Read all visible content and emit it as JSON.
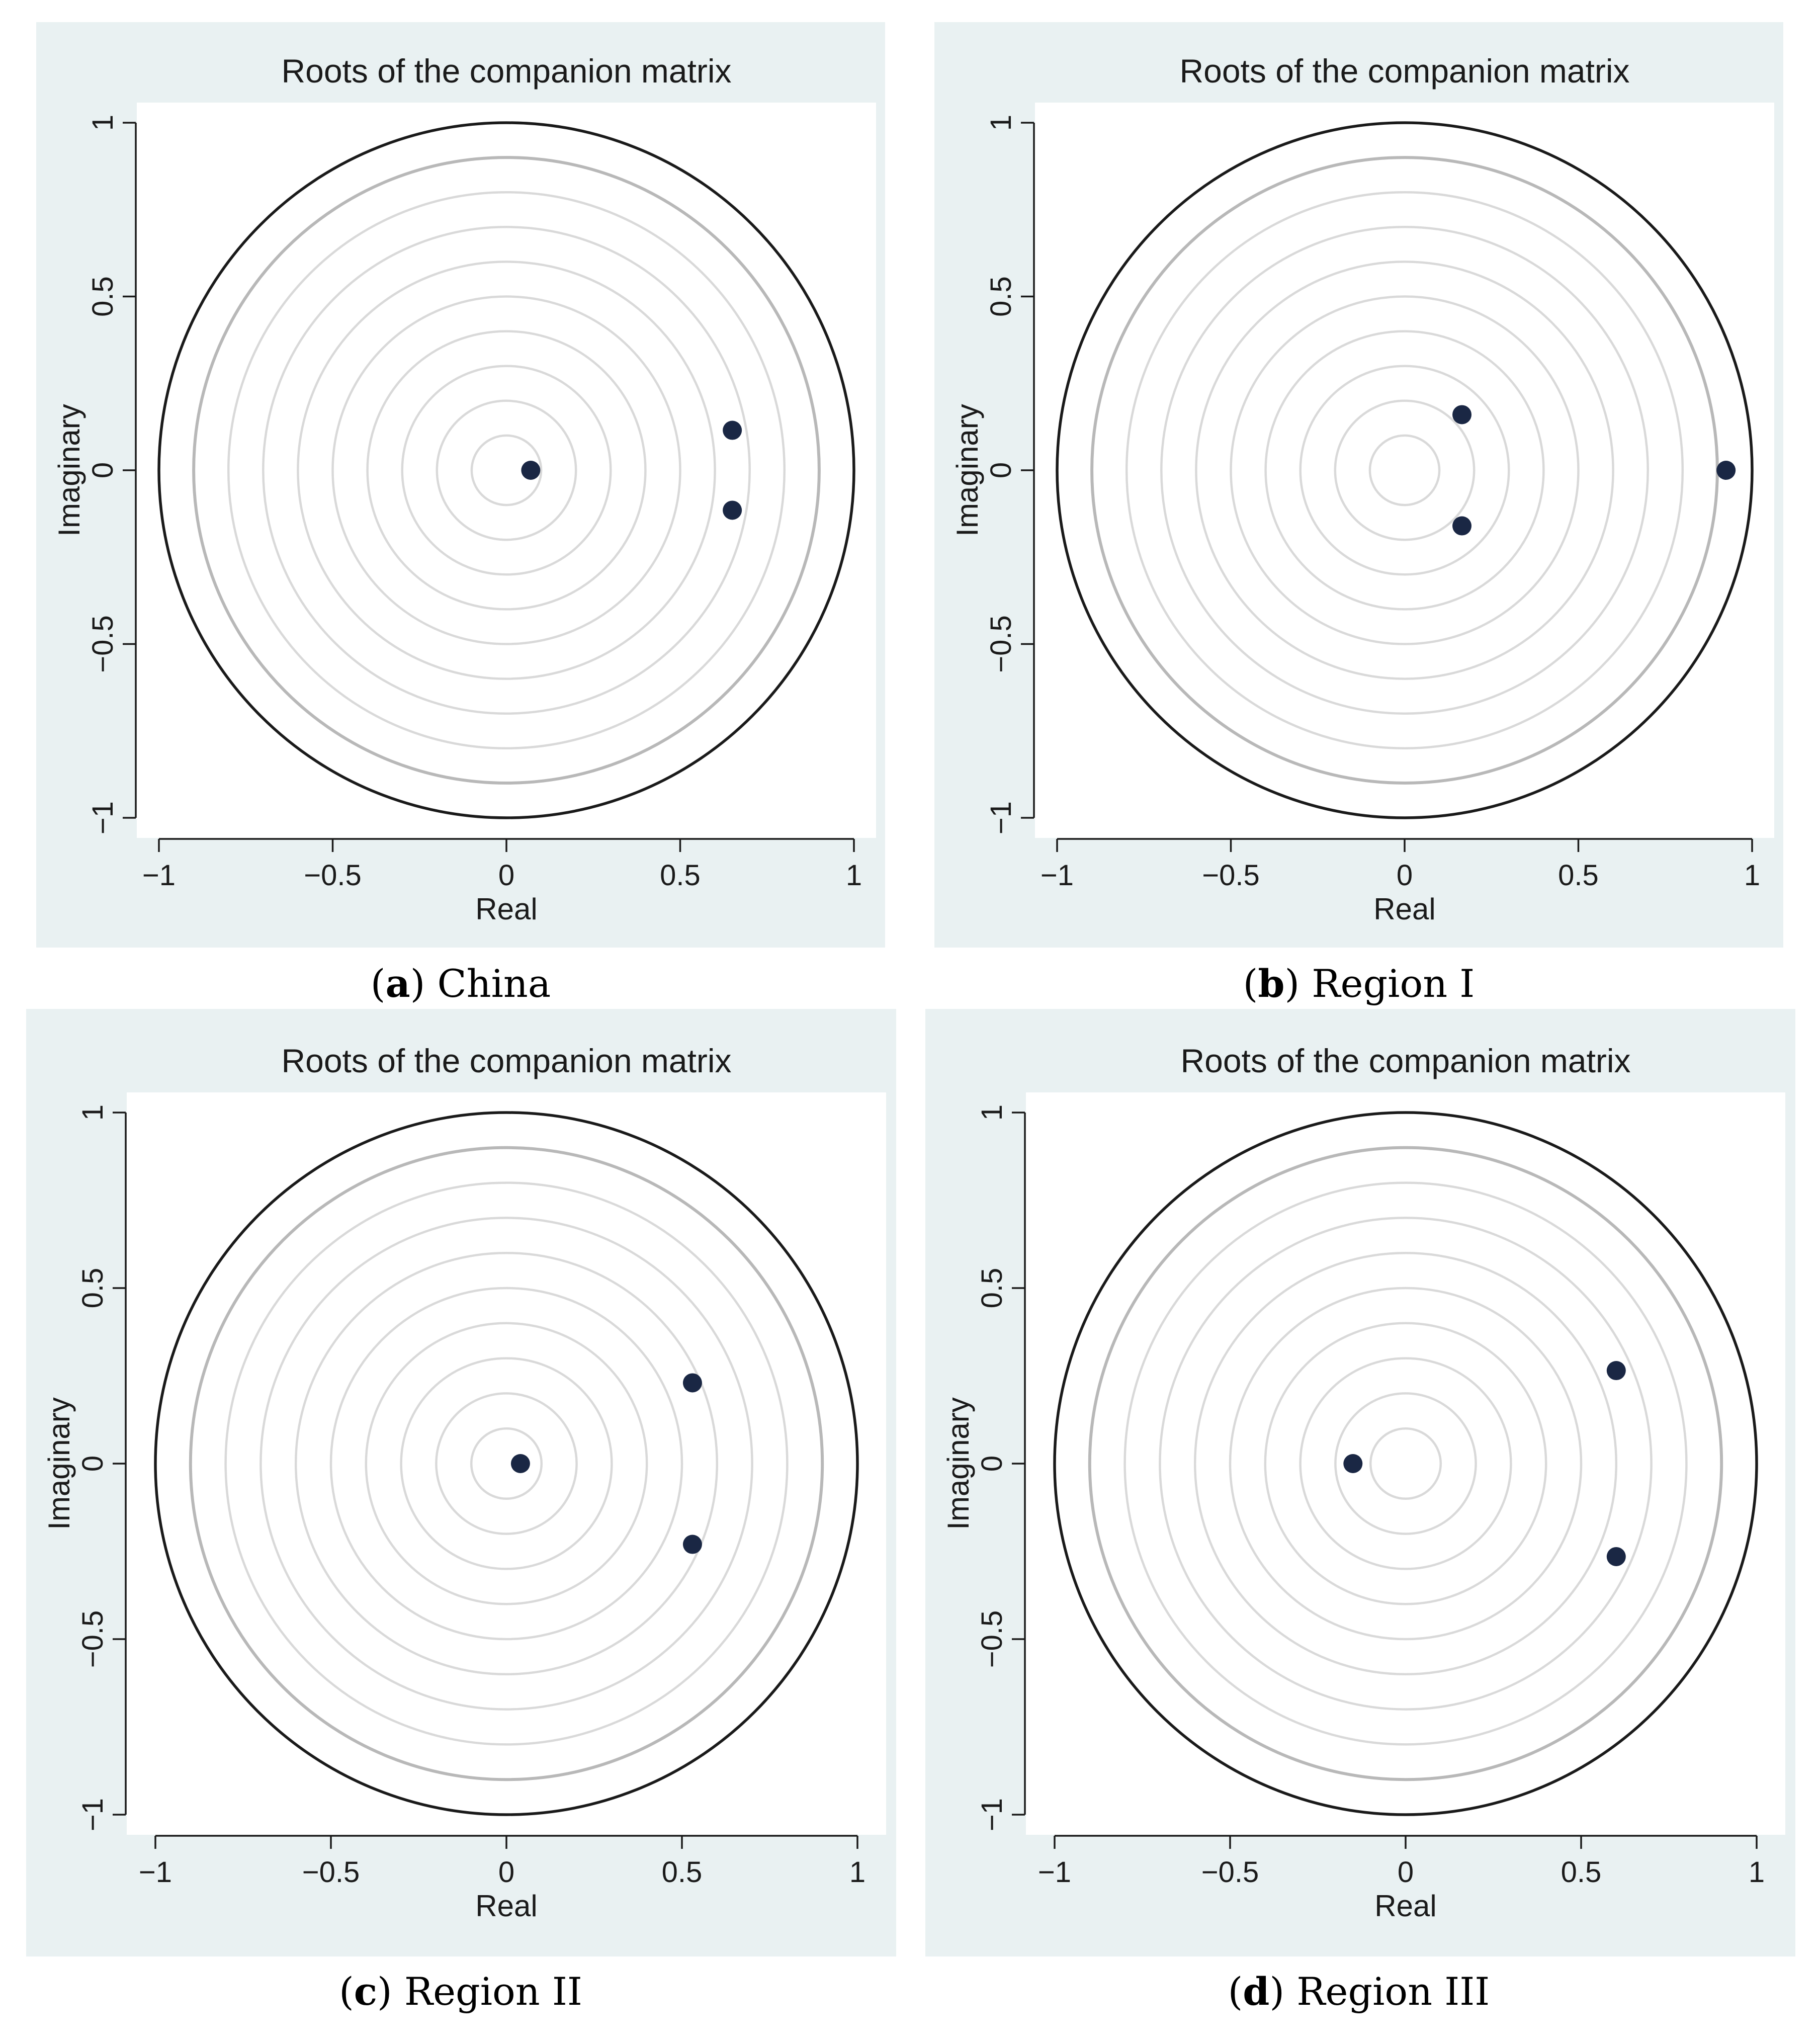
{
  "colors": {
    "panel_background": "#e9f1f2",
    "plot_background": "#ffffff",
    "unit_circle": "#1a1a1a",
    "outer_grid_circle": "#b8b8b8",
    "inner_grid_circles": "#d9d9d9",
    "points": "#1a2744",
    "axis_lines": "#1a1a1a"
  },
  "chart_data": [
    {
      "type": "scatter",
      "title": "Roots of the companion matrix",
      "xlabel": "Real",
      "ylabel": "Imaginary",
      "xlim": [
        -1,
        1
      ],
      "ylim": [
        -1,
        1
      ],
      "xticks": [
        -1,
        -0.5,
        0,
        0.5,
        1
      ],
      "xtick_labels": [
        "−1",
        "−0.5",
        "0",
        "0.5",
        "1"
      ],
      "yticks": [
        -1,
        -0.5,
        0,
        0.5,
        1
      ],
      "ytick_labels": [
        "−1",
        "−0.5",
        "0",
        "0.5",
        "1"
      ],
      "caption_letter": "(a)",
      "caption_letter_text": "a",
      "caption_name": "China",
      "grid_radii": [
        0.1,
        0.2,
        0.3,
        0.4,
        0.5,
        0.6,
        0.7,
        0.8,
        0.9
      ],
      "points": [
        {
          "x": 0.07,
          "y": 0.0
        },
        {
          "x": 0.65,
          "y": 0.115
        },
        {
          "x": 0.65,
          "y": -0.115
        }
      ]
    },
    {
      "type": "scatter",
      "title": "Roots of the companion matrix",
      "xlabel": "Real",
      "ylabel": "Imaginary",
      "xlim": [
        -1,
        1
      ],
      "ylim": [
        -1,
        1
      ],
      "xticks": [
        -1,
        -0.5,
        0,
        0.5,
        1
      ],
      "xtick_labels": [
        "−1",
        "−0.5",
        "0",
        "0.5",
        "1"
      ],
      "yticks": [
        -1,
        -0.5,
        0,
        0.5,
        1
      ],
      "ytick_labels": [
        "−1",
        "−0.5",
        "0",
        "0.5",
        "1"
      ],
      "caption_letter_text": "b",
      "caption_name": "Region I",
      "grid_radii": [
        0.1,
        0.2,
        0.3,
        0.4,
        0.5,
        0.6,
        0.7,
        0.8,
        0.9
      ],
      "points": [
        {
          "x": 0.165,
          "y": 0.16
        },
        {
          "x": 0.165,
          "y": -0.16
        },
        {
          "x": 0.925,
          "y": 0.0
        }
      ]
    },
    {
      "type": "scatter",
      "title": "Roots of the companion matrix",
      "xlabel": "Real",
      "ylabel": "Imaginary",
      "xlim": [
        -1,
        1
      ],
      "ylim": [
        -1,
        1
      ],
      "xticks": [
        -1,
        -0.5,
        0,
        0.5,
        1
      ],
      "xtick_labels": [
        "−1",
        "−0.5",
        "0",
        "0.5",
        "1"
      ],
      "yticks": [
        -1,
        -0.5,
        0,
        0.5,
        1
      ],
      "ytick_labels": [
        "−1",
        "−0.5",
        "0",
        "0.5",
        "1"
      ],
      "caption_letter_text": "c",
      "caption_name": "Region II",
      "grid_radii": [
        0.1,
        0.2,
        0.3,
        0.4,
        0.5,
        0.6,
        0.7,
        0.8,
        0.9
      ],
      "points": [
        {
          "x": 0.04,
          "y": 0.0
        },
        {
          "x": 0.53,
          "y": 0.23
        },
        {
          "x": 0.53,
          "y": -0.23
        }
      ]
    },
    {
      "type": "scatter",
      "title": "Roots of the companion matrix",
      "xlabel": "Real",
      "ylabel": "Imaginary",
      "xlim": [
        -1,
        1
      ],
      "ylim": [
        -1,
        1
      ],
      "xticks": [
        -1,
        -0.5,
        0,
        0.5,
        1
      ],
      "xtick_labels": [
        "−1",
        "−0.5",
        "0",
        "0.5",
        "1"
      ],
      "yticks": [
        -1,
        -0.5,
        0,
        0.5,
        1
      ],
      "ytick_labels": [
        "−1",
        "−0.5",
        "0",
        "0.5",
        "1"
      ],
      "caption_letter_text": "d",
      "caption_name": "Region III",
      "grid_radii": [
        0.1,
        0.2,
        0.3,
        0.4,
        0.5,
        0.6,
        0.7,
        0.8,
        0.9
      ],
      "points": [
        {
          "x": -0.15,
          "y": 0.0
        },
        {
          "x": 0.6,
          "y": 0.265
        },
        {
          "x": 0.6,
          "y": -0.265
        }
      ]
    }
  ]
}
